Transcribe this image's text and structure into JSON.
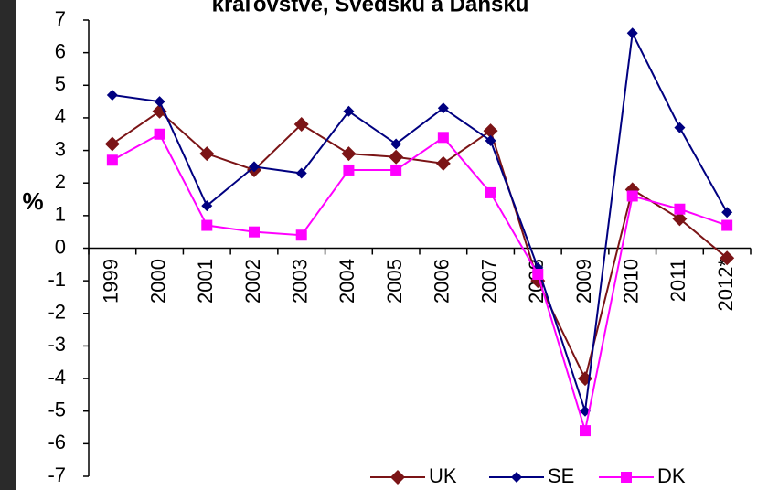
{
  "chart_data": {
    "type": "line",
    "title": "kráľovstve, Švédsku a Dánsku",
    "y_label": "%",
    "categories": [
      "1999",
      "2000",
      "2001",
      "2002",
      "2003",
      "2004",
      "2005",
      "2006",
      "2007",
      "2008",
      "2009",
      "2010",
      "2011",
      "2012*"
    ],
    "series": [
      {
        "name": "UK",
        "color": "#7b1416",
        "marker": "diamond",
        "values": [
          3.2,
          4.2,
          2.9,
          2.4,
          3.8,
          2.9,
          2.8,
          2.6,
          3.6,
          -1.0,
          -4.0,
          1.8,
          0.9,
          -0.3
        ]
      },
      {
        "name": "SE",
        "color": "#000080",
        "marker": "diamond",
        "values": [
          4.7,
          4.5,
          1.3,
          2.5,
          2.3,
          4.2,
          3.2,
          4.3,
          3.3,
          -0.6,
          -5.0,
          6.6,
          3.7,
          1.1
        ]
      },
      {
        "name": "DK",
        "color": "#ff00ff",
        "marker": "square",
        "values": [
          2.7,
          3.5,
          0.7,
          0.5,
          0.4,
          2.4,
          2.4,
          3.4,
          1.7,
          -0.8,
          -5.6,
          1.6,
          1.2,
          0.7
        ]
      }
    ],
    "ylim": [
      -7,
      7
    ],
    "yticks": [
      -7,
      -6,
      -5,
      -4,
      -3,
      -2,
      -1,
      0,
      1,
      2,
      3,
      4,
      5,
      6,
      7
    ],
    "legend": "lower right"
  }
}
